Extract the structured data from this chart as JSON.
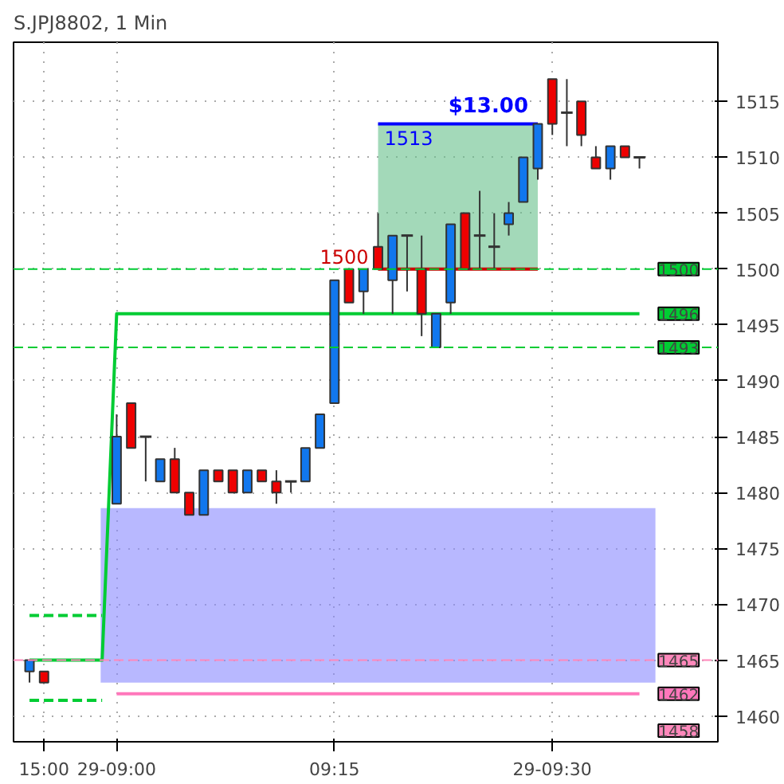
{
  "chart_data": {
    "type": "candlestick",
    "title": "S.JPJ8802, 1 Min",
    "categories": [
      null,
      "15:00",
      null,
      null,
      null,
      null,
      "29-09:00",
      null,
      null,
      null,
      null,
      null,
      null,
      null,
      null,
      null,
      null,
      null,
      null,
      null,
      null,
      "09:15",
      null,
      null,
      null,
      null,
      null,
      null,
      null,
      null,
      null,
      null,
      null,
      null,
      null,
      null,
      "29-09:30",
      null,
      null,
      null,
      null,
      null,
      null
    ],
    "ohlc": [
      [
        1464,
        1465,
        1463,
        1465
      ],
      [
        1464,
        1464,
        1463,
        1463
      ],
      null,
      null,
      null,
      null,
      [
        1479,
        1487,
        1479,
        1485
      ],
      [
        1488,
        1488,
        1484,
        1484
      ],
      [
        1485,
        1485,
        1481,
        1485
      ],
      [
        1481,
        1483,
        1481,
        1483
      ],
      [
        1483,
        1484,
        1480,
        1480
      ],
      [
        1480,
        1480,
        1478,
        1478
      ],
      [
        1478,
        1482,
        1478,
        1482
      ],
      [
        1482,
        1482,
        1481,
        1481
      ],
      [
        1482,
        1482,
        1480,
        1480
      ],
      [
        1480,
        1482,
        1480,
        1482
      ],
      [
        1482,
        1482,
        1481,
        1481
      ],
      [
        1481,
        1482,
        1479,
        1480
      ],
      [
        1481,
        1481,
        1480,
        1481
      ],
      [
        1481,
        1484,
        1481,
        1484
      ],
      [
        1484,
        1487,
        1484,
        1487
      ],
      [
        1488,
        1499,
        1488,
        1499
      ],
      [
        1500,
        1500,
        1497,
        1497
      ],
      [
        1498,
        1500,
        1496,
        1500
      ],
      [
        1502,
        1505,
        1500,
        1500
      ],
      [
        1499,
        1503,
        1496,
        1503
      ],
      [
        1503,
        1503,
        1498,
        1503
      ],
      [
        1500,
        1503,
        1494,
        1496
      ],
      [
        1493,
        1496,
        1493,
        1496
      ],
      [
        1497,
        1504,
        1496,
        1504
      ],
      [
        1505,
        1505,
        1500,
        1500
      ],
      [
        1503,
        1507,
        1500,
        1503
      ],
      [
        1502,
        1505,
        1500,
        1502
      ],
      [
        1504,
        1506,
        1503,
        1505
      ],
      [
        1506,
        1510,
        1506,
        1510
      ],
      [
        1509,
        1513,
        1508,
        1513
      ],
      [
        1517,
        1517,
        1512,
        1513
      ],
      [
        1514,
        1517,
        1511,
        1514
      ],
      [
        1515,
        1515,
        1511,
        1512
      ],
      [
        1510,
        1511,
        1509,
        1509
      ],
      [
        1509,
        1511,
        1508,
        1511
      ],
      [
        1511,
        1511,
        1510,
        1510
      ],
      [
        1510,
        1510,
        1509,
        1510
      ]
    ],
    "colors": [
      "#1177ee",
      "#ee0000",
      null,
      null,
      null,
      null,
      "#1177ee",
      "#ee0000",
      "#333333",
      "#1177ee",
      "#ee0000",
      "#ee0000",
      "#1177ee",
      "#ee0000",
      "#ee0000",
      "#1177ee",
      "#ee0000",
      "#ee0000",
      "#333333",
      "#1177ee",
      "#1177ee",
      "#1177ee",
      "#ee0000",
      "#1177ee",
      "#ee0000",
      "#1177ee",
      "#333333",
      "#ee0000",
      "#1177ee",
      "#1177ee",
      "#ee0000",
      "#333333",
      "#333333",
      "#1177ee",
      "#1177ee",
      "#1177ee",
      "#ee0000",
      "#333333",
      "#ee0000",
      "#ee0000",
      "#1177ee",
      "#ee0000",
      "#333333"
    ],
    "series": [
      {
        "type": "line",
        "color": "#00cc33",
        "line_style": "solid",
        "values": [
          1465,
          1465,
          1465,
          1465,
          1465,
          1465,
          1496,
          1496,
          1496,
          1496,
          1496,
          1496,
          1496,
          1496,
          1496,
          1496,
          1496,
          1496,
          1496,
          1496,
          1496,
          1496,
          1496,
          1496,
          1496,
          1496,
          1496,
          1496,
          1496,
          1496,
          1496,
          1496,
          1496,
          1496,
          1496,
          1496,
          1496,
          1496,
          1496,
          1496,
          1496,
          1496,
          1496
        ],
        "value_labels": [
          null,
          null,
          null,
          null,
          null,
          null,
          null,
          null,
          null,
          null,
          null,
          null,
          null,
          null,
          null,
          null,
          null,
          null,
          null,
          null,
          null,
          null,
          null,
          null,
          null,
          null,
          null,
          null,
          null,
          null,
          null,
          null,
          null,
          null,
          null,
          null,
          null,
          null,
          null,
          null,
          null,
          null,
          "1496"
        ]
      },
      {
        "type": "line",
        "color": "#ff77bb",
        "line_style": "solid",
        "values": [
          null,
          null,
          null,
          null,
          null,
          null,
          1462,
          1462,
          1462,
          1462,
          1462,
          1462,
          1462,
          1462,
          1462,
          1462,
          1462,
          1462,
          1462,
          1462,
          1462,
          1462,
          1462,
          1462,
          1462,
          1462,
          1462,
          1462,
          1462,
          1462,
          1462,
          1462,
          1462,
          1462,
          1462,
          1462,
          1462,
          1462,
          1462,
          1462,
          1462,
          1462,
          1462
        ],
        "value_labels": [
          null,
          null,
          null,
          null,
          null,
          null,
          null,
          null,
          null,
          null,
          null,
          null,
          null,
          null,
          null,
          null,
          null,
          null,
          null,
          null,
          null,
          null,
          null,
          null,
          null,
          null,
          null,
          null,
          null,
          null,
          null,
          null,
          null,
          null,
          null,
          null,
          null,
          null,
          null,
          null,
          null,
          null,
          "1462"
        ]
      },
      {
        "type": "line",
        "color": "#00cc33",
        "line_style": "dashed",
        "values": [
          1469,
          1469,
          1469,
          1469,
          1469,
          1469,
          null,
          null,
          null,
          null,
          null,
          null,
          null,
          null,
          null,
          null,
          null,
          null,
          null,
          null,
          null,
          null,
          null,
          null,
          null,
          null,
          null,
          null,
          null,
          null,
          null,
          null,
          null,
          null,
          null,
          null,
          null,
          null,
          null,
          null,
          null,
          null,
          null
        ]
      },
      {
        "type": "line",
        "color": "#00cc33",
        "line_style": "dashed",
        "values": [
          1461.4,
          1461.4,
          1461.4,
          1461.4,
          1461.4,
          1461.4,
          null,
          null,
          null,
          null,
          null,
          null,
          null,
          null,
          null,
          null,
          null,
          null,
          null,
          null,
          null,
          null,
          null,
          null,
          null,
          null,
          null,
          null,
          null,
          null,
          null,
          null,
          null,
          null,
          null,
          null,
          null,
          null,
          null,
          null,
          null,
          null,
          null
        ]
      },
      {
        "type": "line",
        "color": "#0000ff",
        "line_style": "solid",
        "values": [
          null,
          null,
          null,
          null,
          null,
          null,
          null,
          null,
          null,
          null,
          null,
          null,
          null,
          null,
          null,
          null,
          null,
          null,
          null,
          null,
          null,
          null,
          null,
          null,
          1513,
          1513,
          1513,
          1513,
          1513,
          1513,
          1513,
          1513,
          1513,
          1513,
          1513,
          1513,
          null,
          null,
          null,
          null,
          null,
          null,
          null
        ],
        "value_labels": [
          null,
          null,
          null,
          null,
          null,
          null,
          null,
          null,
          null,
          null,
          null,
          null,
          null,
          null,
          null,
          null,
          null,
          null,
          null,
          null,
          null,
          null,
          null,
          null,
          "1513",
          null,
          null,
          null,
          null,
          null,
          null,
          null,
          null,
          null,
          null,
          null,
          null,
          null,
          null,
          null,
          null,
          null,
          null
        ]
      },
      {
        "type": "line",
        "color": "#cc0000",
        "line_style": "solid",
        "values": [
          null,
          null,
          null,
          null,
          null,
          null,
          null,
          null,
          null,
          null,
          null,
          null,
          null,
          null,
          null,
          null,
          null,
          null,
          null,
          null,
          null,
          null,
          null,
          null,
          1500,
          1500,
          1500,
          1500,
          1500,
          1500,
          1500,
          1500,
          1500,
          1500,
          1500,
          1500,
          null,
          null,
          null,
          null,
          null,
          null,
          null
        ],
        "value_labels": [
          null,
          null,
          null,
          null,
          null,
          null,
          null,
          null,
          null,
          null,
          null,
          null,
          null,
          null,
          null,
          null,
          null,
          null,
          null,
          null,
          null,
          null,
          null,
          null,
          "1500",
          null,
          null,
          null,
          null,
          null,
          null,
          null,
          null,
          null,
          null,
          null,
          null,
          null,
          null,
          null,
          null,
          null,
          null
        ]
      }
    ],
    "ref_lines": [
      {
        "axis": "y",
        "value": 1500,
        "label": "1500",
        "color": "#00cc33",
        "line_style": "dashed"
      },
      {
        "axis": "y",
        "value": 1493,
        "label": "1493",
        "color": "#00cc33",
        "line_style": "dashed"
      },
      {
        "axis": "y",
        "value": 1465,
        "label": "1465",
        "color": "#ff88bb",
        "line_style": "dashed"
      }
    ],
    "bands": [
      {
        "axis": "y",
        "from": 1463,
        "to": 1478.6,
        "color": "#8888ff"
      },
      {
        "axis": "y",
        "from": 1500,
        "to": 1513,
        "color": "#66c08a"
      }
    ],
    "annotations": [
      "$13.00",
      "1458"
    ],
    "ylim": [
      1457.7,
      1520.3
    ],
    "yticks": [
      1460,
      1465,
      1470,
      1475,
      1480,
      1485,
      1490,
      1495,
      1500,
      1505,
      1510,
      1515
    ],
    "grid": true
  }
}
